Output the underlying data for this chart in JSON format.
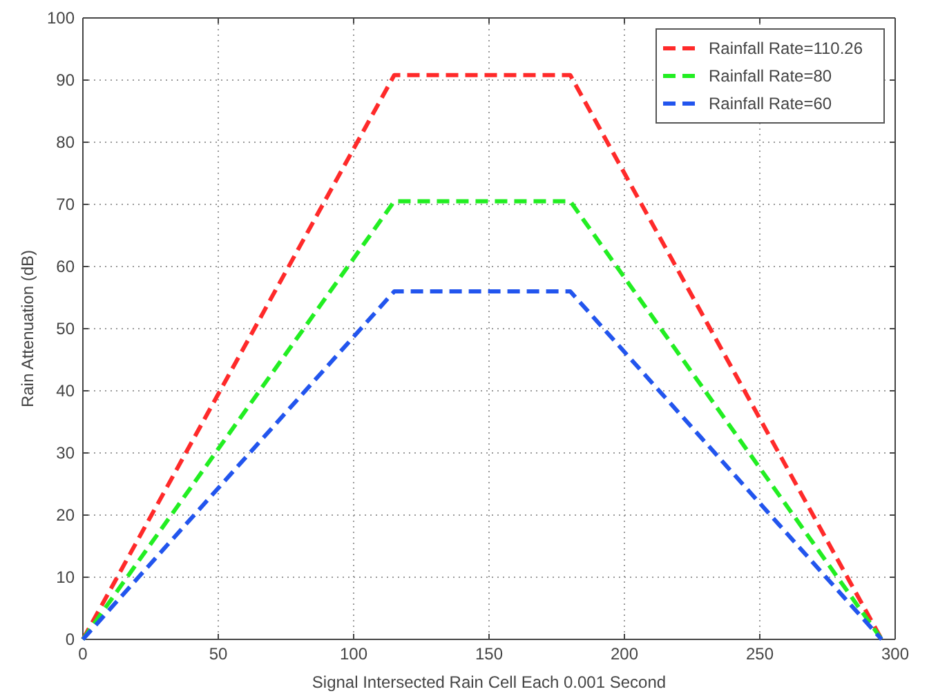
{
  "chart_data": {
    "type": "line",
    "xlabel": "Signal Intersected Rain Cell Each 0.001 Second",
    "ylabel": "Rain Attenuation (dB)",
    "x": [
      0,
      115,
      180,
      295
    ],
    "series": [
      {
        "name": "Rainfall Rate=110.26",
        "color": "#ff2a2a",
        "values": [
          0,
          90.8,
          90.8,
          0
        ]
      },
      {
        "name": "Rainfall Rate=80",
        "color": "#22ee22",
        "values": [
          0,
          70.5,
          70.5,
          0
        ]
      },
      {
        "name": "Rainfall Rate=60",
        "color": "#2255ee",
        "values": [
          0,
          56,
          56,
          0
        ]
      }
    ],
    "xlim": [
      0,
      300
    ],
    "xticks": [
      0,
      50,
      100,
      150,
      200,
      250,
      300
    ],
    "ylim": [
      0,
      100
    ],
    "yticks": [
      0,
      10,
      20,
      30,
      40,
      50,
      60,
      70,
      80,
      90,
      100
    ],
    "grid": true,
    "legend": "top right",
    "line_style": "dashed",
    "marker": "none"
  }
}
